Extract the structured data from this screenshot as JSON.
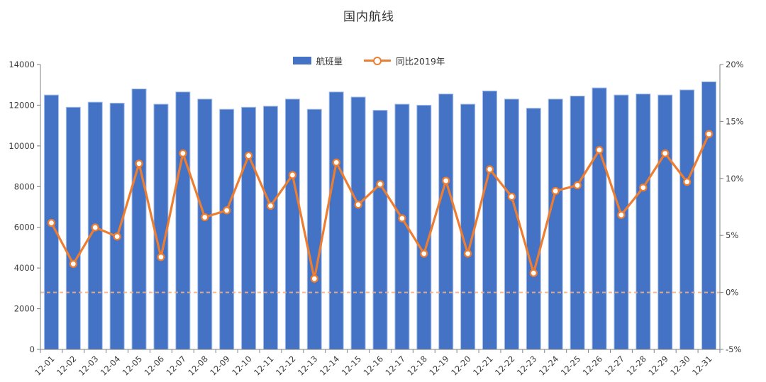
{
  "chart_data": {
    "type": "bar+line combo",
    "title": "国内航线",
    "legend_position": "top-center",
    "categories": [
      "12-01",
      "12-02",
      "12-03",
      "12-04",
      "12-05",
      "12-06",
      "12-07",
      "12-08",
      "12-09",
      "12-10",
      "12-11",
      "12-12",
      "12-13",
      "12-14",
      "12-15",
      "12-16",
      "12-17",
      "12-18",
      "12-19",
      "12-20",
      "12-21",
      "12-22",
      "12-23",
      "12-24",
      "12-25",
      "12-26",
      "12-27",
      "12-28",
      "12-29",
      "12-30",
      "12-31"
    ],
    "series": [
      {
        "name": "航班量",
        "type": "bar",
        "axis": "left",
        "values": [
          12500,
          11900,
          12150,
          12100,
          12800,
          12050,
          12650,
          12300,
          11800,
          11900,
          11950,
          12300,
          11800,
          12650,
          12400,
          11750,
          12050,
          12000,
          12550,
          12050,
          12700,
          12300,
          11850,
          12300,
          12450,
          12850,
          12500,
          12550,
          12500,
          12750,
          13150
        ]
      },
      {
        "name": "同比2019年",
        "type": "line",
        "axis": "right",
        "unit": "%",
        "values": [
          6.1,
          2.5,
          5.7,
          4.9,
          11.3,
          3.1,
          12.2,
          6.6,
          7.2,
          12.0,
          7.6,
          10.3,
          1.2,
          11.4,
          7.7,
          9.5,
          6.5,
          3.4,
          9.8,
          3.4,
          10.8,
          8.4,
          1.7,
          8.9,
          9.4,
          12.5,
          6.8,
          9.2,
          12.2,
          9.7,
          13.9
        ]
      }
    ],
    "left_axis": {
      "min": 0,
      "max": 14000,
      "step": 2000,
      "tick_labels": [
        "0",
        "2000",
        "4000",
        "6000",
        "8000",
        "10000",
        "12000",
        "14000"
      ]
    },
    "right_axis": {
      "min": -5,
      "max": 20,
      "step": 5,
      "tick_labels": [
        "-5%",
        "0%",
        "5%",
        "10%",
        "15%",
        "20%"
      ]
    },
    "reference_line": {
      "axis": "right",
      "value": 0,
      "style": "dashed"
    },
    "grid": "off",
    "colors": {
      "bar": "#4472C4",
      "bar_edge": "#A6C0E8",
      "line": "#ED7D31",
      "marker_fill": "#FFFFFF",
      "ref_line": "#F4B183",
      "axis": "#7F7F7F",
      "text": "#3B3B3B",
      "title": "#333333"
    }
  }
}
